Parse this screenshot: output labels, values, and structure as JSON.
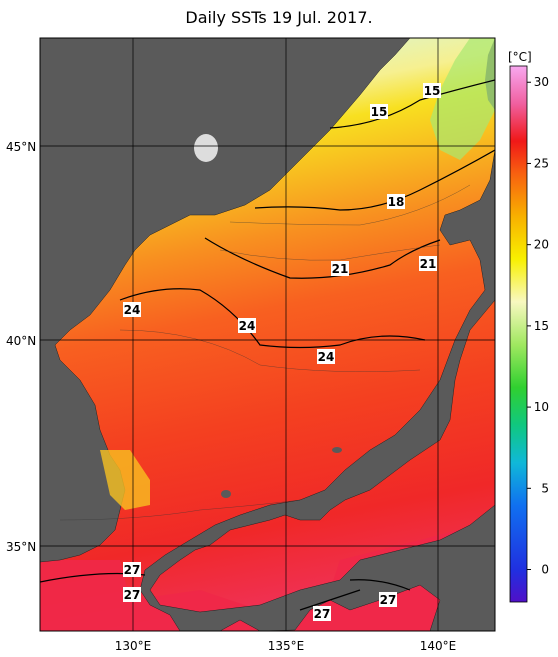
{
  "title": "Daily SSTs 19 Jul. 2017.",
  "axes": {
    "lat_labels": [
      "45°N",
      "40°N",
      "35°N"
    ],
    "lon_labels": [
      "130°E",
      "135°E",
      "140°E"
    ]
  },
  "colorbar": {
    "unit": "[°C]",
    "ticks": [
      "30",
      "25",
      "20",
      "15",
      "10",
      "5",
      "0"
    ],
    "range": [
      -2,
      31
    ]
  },
  "contour_labels": [
    "15",
    "15",
    "18",
    "21",
    "21",
    "24",
    "24",
    "24",
    "27",
    "27",
    "27",
    "27"
  ],
  "colors": {
    "land": "#5a5a5a",
    "grid": "#000000"
  }
}
